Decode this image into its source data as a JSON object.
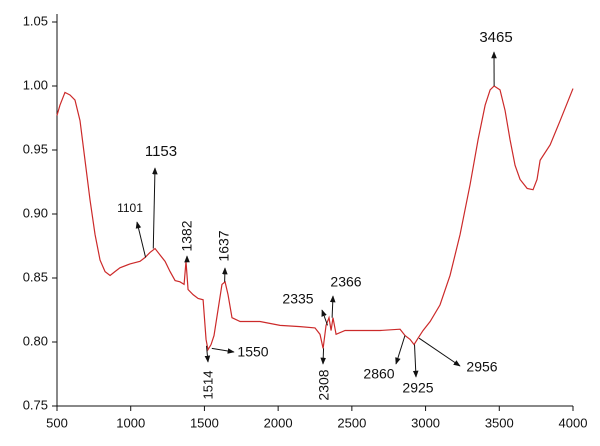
{
  "chart_data": {
    "type": "line",
    "x": [
      500,
      520,
      554,
      588,
      622,
      656,
      690,
      724,
      758,
      792,
      826,
      860,
      893,
      927,
      995,
      1063,
      1097,
      1131,
      1165,
      1199,
      1233,
      1267,
      1301,
      1334,
      1362,
      1375,
      1389,
      1423,
      1457,
      1491,
      1511,
      1524,
      1545,
      1565,
      1592,
      1619,
      1640,
      1660,
      1687,
      1742,
      1877,
      2013,
      2149,
      2250,
      2284,
      2305,
      2325,
      2345,
      2359,
      2372,
      2393,
      2454,
      2691,
      2827,
      2861,
      2895,
      2922,
      2949,
      2983,
      3031,
      3098,
      3166,
      3234,
      3302,
      3356,
      3404,
      3438,
      3465,
      3505,
      3539,
      3573,
      3607,
      3641,
      3689,
      3729,
      3756,
      3777,
      3845,
      3913,
      4000
    ],
    "series": [
      {
        "color": "#cc2a2a",
        "values": [
          0.977,
          0.985,
          0.995,
          0.993,
          0.989,
          0.973,
          0.942,
          0.911,
          0.884,
          0.864,
          0.855,
          0.852,
          0.855,
          0.858,
          0.861,
          0.863,
          0.866,
          0.87,
          0.873,
          0.868,
          0.863,
          0.855,
          0.848,
          0.847,
          0.845,
          0.863,
          0.841,
          0.837,
          0.834,
          0.833,
          0.802,
          0.794,
          0.798,
          0.805,
          0.825,
          0.845,
          0.847,
          0.837,
          0.819,
          0.816,
          0.816,
          0.813,
          0.812,
          0.811,
          0.806,
          0.795,
          0.813,
          0.819,
          0.809,
          0.819,
          0.806,
          0.809,
          0.809,
          0.81,
          0.805,
          0.802,
          0.798,
          0.803,
          0.809,
          0.816,
          0.829,
          0.852,
          0.884,
          0.923,
          0.958,
          0.985,
          0.997,
          1.0,
          0.997,
          0.981,
          0.958,
          0.938,
          0.927,
          0.92,
          0.919,
          0.927,
          0.942,
          0.954,
          0.973,
          0.998
        ]
      }
    ],
    "xlim": [
      500,
      4000
    ],
    "xticks": [
      500,
      1000,
      1500,
      2000,
      2500,
      3000,
      3500,
      4000
    ],
    "ylim": [
      0.75,
      1.05
    ],
    "yticks": [
      0.75,
      {
        "value": 0.8,
        "label": "0.80"
      },
      0.85,
      {
        "value": 0.9,
        "label": "0.90"
      },
      0.95,
      {
        "value": 1,
        "label": "1.00"
      },
      1.05
    ],
    "annotations": [
      {
        "x": 1101,
        "y": 0.866
      },
      {
        "x": 1153,
        "y": 0.873
      },
      {
        "x": 1382,
        "y": 0.863
      },
      {
        "x": 1637,
        "y": 0.847
      },
      {
        "x": 1514,
        "y": 0.797
      },
      {
        "x": 1550,
        "y": 0.795
      },
      {
        "x": 2308,
        "y": 0.795
      },
      {
        "x": 2335,
        "y": 0.813
      },
      {
        "x": 2366,
        "y": 0.819
      },
      {
        "x": 2860,
        "y": 0.805
      },
      {
        "x": 2925,
        "y": 0.798
      },
      {
        "x": 2956,
        "y": 0.803
      },
      {
        "x": 3465,
        "y": 1.0
      }
    ]
  }
}
